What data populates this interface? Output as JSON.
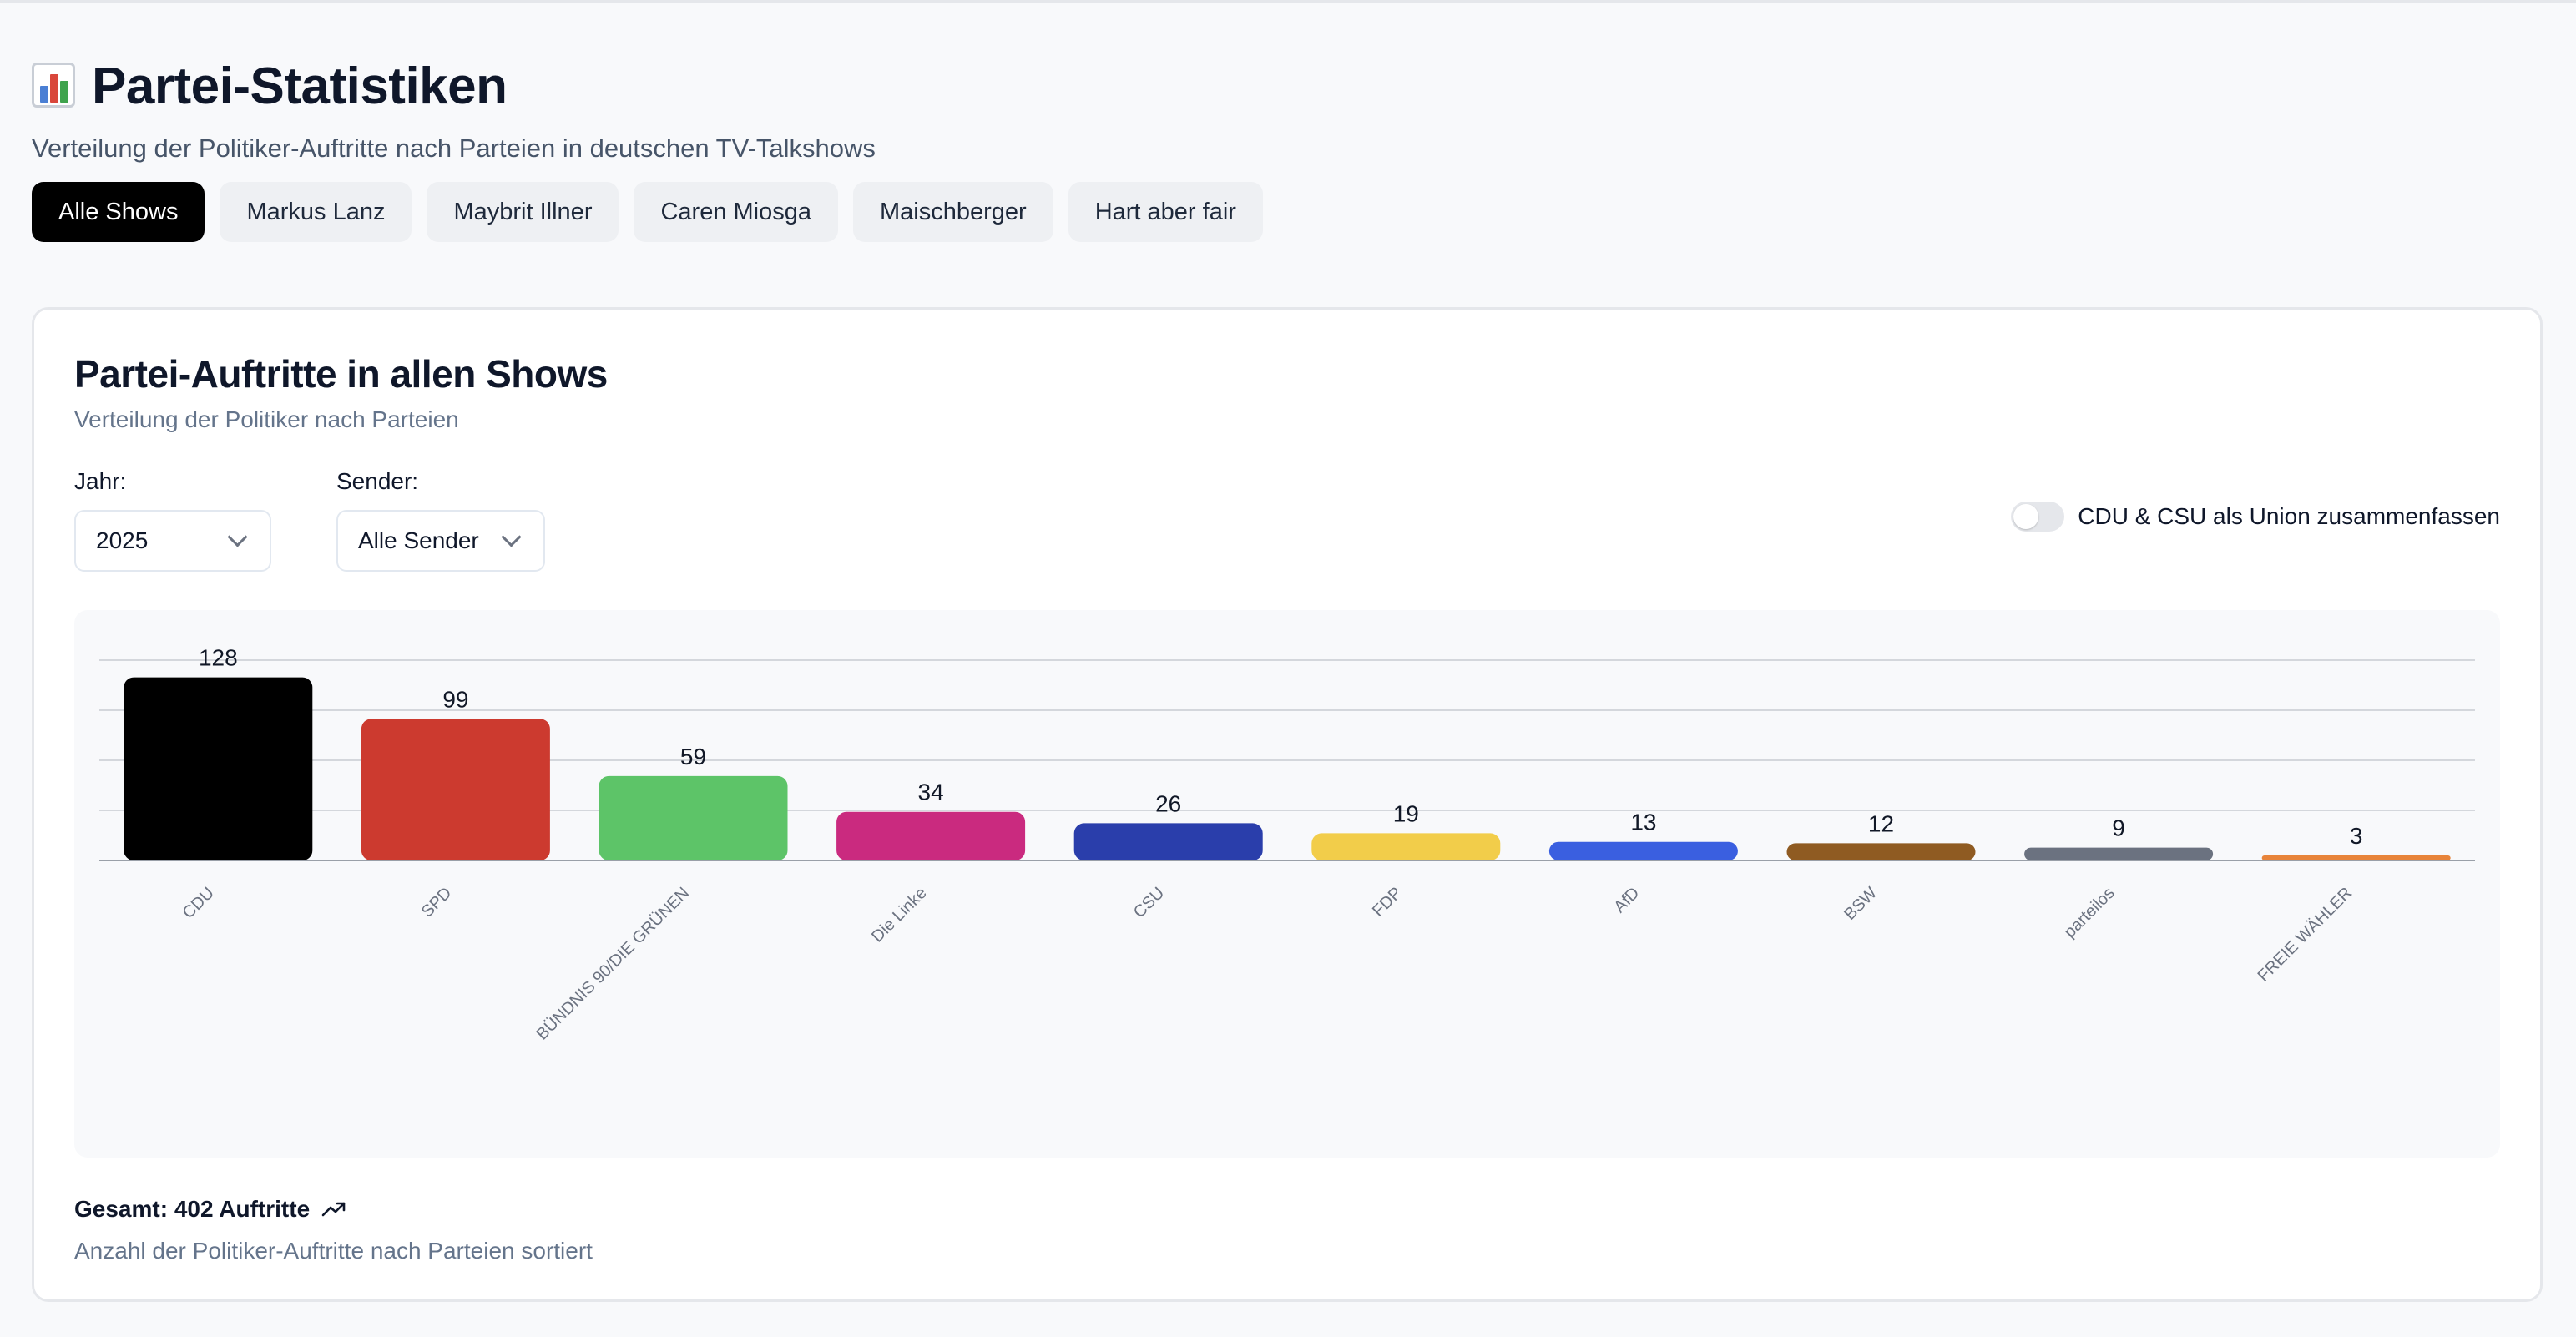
{
  "page": {
    "title": "Partei-Statistiken",
    "title_icon": "bar-chart-icon",
    "subtitle": "Verteilung der Politiker-Auftritte nach Parteien in deutschen TV-Talkshows"
  },
  "tabs": [
    {
      "label": "Alle Shows",
      "active": true
    },
    {
      "label": "Markus Lanz",
      "active": false
    },
    {
      "label": "Maybrit Illner",
      "active": false
    },
    {
      "label": "Caren Miosga",
      "active": false
    },
    {
      "label": "Maischberger",
      "active": false
    },
    {
      "label": "Hart aber fair",
      "active": false
    }
  ],
  "card": {
    "title": "Partei-Auftritte in allen Shows",
    "subtitle": "Verteilung der Politiker nach Parteien",
    "year_label": "Jahr:",
    "year_value": "2025",
    "sender_label": "Sender:",
    "sender_value": "Alle Sender",
    "toggle_label": "CDU & CSU als Union zusammenfassen",
    "toggle_on": false,
    "total_text": "Gesamt: 402 Auftritte",
    "total_icon": "trending-up-icon",
    "footnote": "Anzahl der Politiker-Auftritte nach Parteien sortiert"
  },
  "chart_data": {
    "type": "bar",
    "categories": [
      "CDU",
      "SPD",
      "BÜNDNIS 90/DIE GRÜNEN",
      "Die Linke",
      "CSU",
      "FDP",
      "AfD",
      "BSW",
      "parteilos",
      "FREIE WÄHLER"
    ],
    "values": [
      128,
      99,
      59,
      34,
      26,
      19,
      13,
      12,
      9,
      3
    ],
    "colors": [
      "#000000",
      "#cc3a2f",
      "#5dc468",
      "#ca2a7f",
      "#2a3eab",
      "#f2cd4a",
      "#3a5fe0",
      "#8f5b22",
      "#6b7280",
      "#e8843a"
    ],
    "ylim": [
      0,
      140
    ],
    "grid": true,
    "data_labels": true,
    "xlabel": "",
    "ylabel": ""
  }
}
